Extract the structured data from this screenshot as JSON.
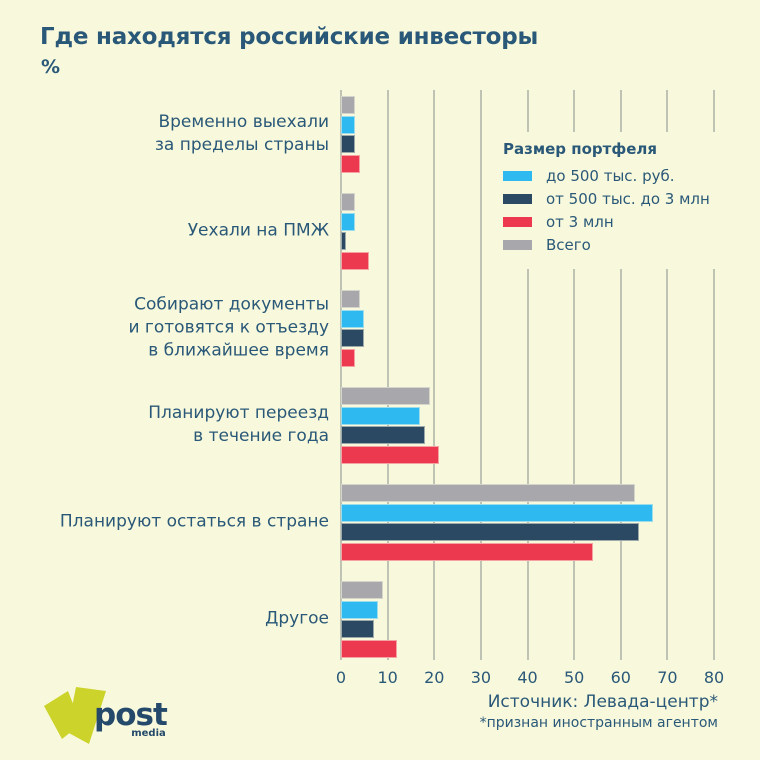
{
  "title": "Где находятся российские инвесторы",
  "subtitle": "%",
  "legend": {
    "title": "Размер портфеля",
    "items": [
      {
        "label": "до 500 тыс. руб.",
        "color": "#2eb9f1"
      },
      {
        "label": "от 500 тыс. до 3 млн",
        "color": "#2c4963"
      },
      {
        "label": "от 3 млн",
        "color": "#ed3950"
      },
      {
        "label": "Всего",
        "color": "#a8a8ac"
      }
    ]
  },
  "source": {
    "line1": "Источник: Левада-центр*",
    "line2": "*признан иностранным агентом"
  },
  "logo": {
    "text": "post",
    "sub": "media",
    "v_color": "#ccd32b"
  },
  "colors": {
    "background": "#f8f9dc",
    "text": "#2a5878",
    "grid": "#bfc3b3"
  },
  "chart_data": {
    "type": "bar",
    "orientation": "horizontal",
    "title": "Где находятся российские инвесторы",
    "value_unit": "%",
    "xlim": [
      0,
      80
    ],
    "xticks": [
      0,
      10,
      20,
      30,
      40,
      50,
      60,
      70,
      80
    ],
    "grid": true,
    "legend_position": "inside-upper-right",
    "categories": [
      "Временно выехали\nза пределы страны",
      "Уехали на ПМЖ",
      "Собирают документы\nи готовятся к отъезду\nв ближайшее время",
      "Планируют переезд\nв течение года",
      "Планируют остаться в стране",
      "Другое"
    ],
    "series": [
      {
        "name": "Всего",
        "color": "#a8a8ac",
        "values": [
          3,
          3,
          4,
          19,
          63,
          9
        ]
      },
      {
        "name": "до 500 тыс. руб.",
        "color": "#2eb9f1",
        "values": [
          3,
          3,
          5,
          17,
          67,
          8
        ]
      },
      {
        "name": "от 500 тыс. до 3 млн",
        "color": "#2c4963",
        "values": [
          3,
          1,
          5,
          18,
          64,
          7
        ]
      },
      {
        "name": "от 3 млн",
        "color": "#ed3950",
        "values": [
          4,
          6,
          3,
          21,
          54,
          12
        ]
      }
    ]
  }
}
